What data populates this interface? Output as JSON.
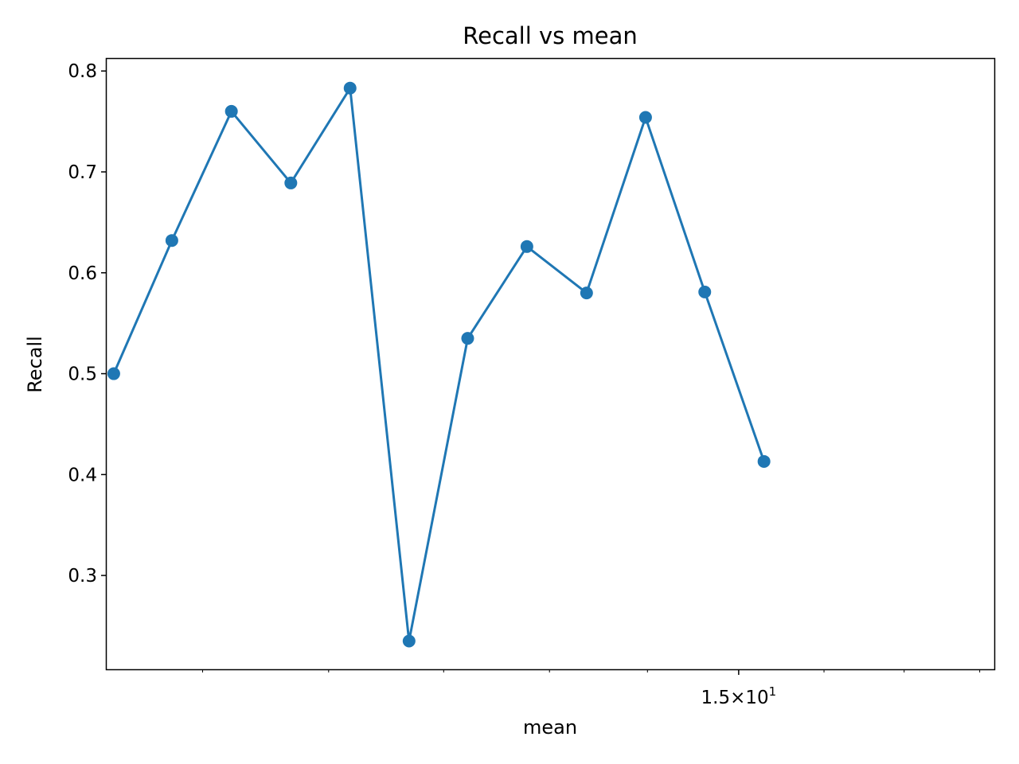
{
  "chart_data": {
    "type": "line",
    "title": "Recall vs mean",
    "xlabel": "mean",
    "ylabel": "Recall",
    "x_scale": "log",
    "x_tick_labels": [
      {
        "value": 15,
        "mantissa": "1.5",
        "times": "×",
        "base": "10",
        "exponent": "1"
      }
    ],
    "y_ticks": [
      0.3,
      0.4,
      0.5,
      0.6,
      0.7,
      0.8
    ],
    "y_tick_labels": [
      "0.3",
      "0.4",
      "0.5",
      "0.6",
      "0.7",
      "0.8"
    ],
    "ylim": [
      0.207,
      0.812
    ],
    "xlim": [
      9.3,
      18.2
    ],
    "grid": false,
    "color": "#1f77b4",
    "series": [
      {
        "x": [
          9.35,
          9.77,
          10.22,
          10.69,
          11.18,
          11.69,
          12.22,
          12.78,
          13.37,
          13.98,
          14.62,
          15.29
        ],
        "y": [
          0.5,
          0.632,
          0.76,
          0.689,
          0.783,
          0.235,
          0.535,
          0.626,
          0.58,
          0.754,
          0.581,
          0.413
        ]
      }
    ]
  }
}
